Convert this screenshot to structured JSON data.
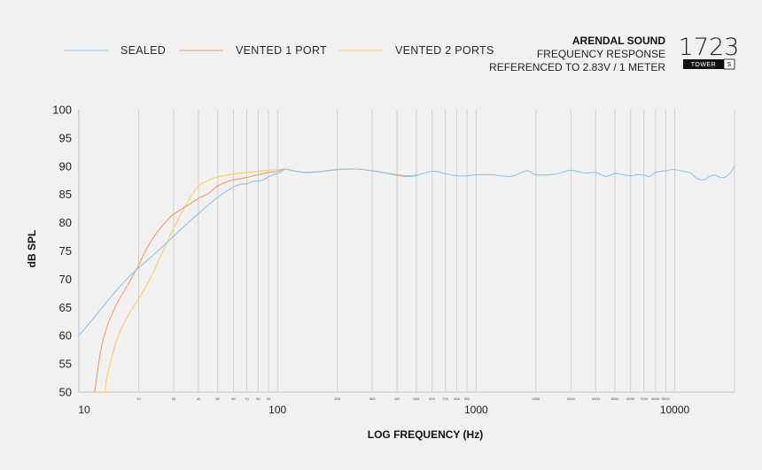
{
  "header": {
    "brand": "ARENDAL SOUND",
    "subtitle": "FREQUENCY RESPONSE",
    "reference": "REFERENCED TO 2.83V / 1 METER"
  },
  "logo": {
    "model": "1723",
    "variant": "TOWER",
    "size": "S"
  },
  "chart_data": {
    "type": "line",
    "title": "FREQUENCY RESPONSE",
    "xlabel": "LOG FREQUENCY (Hz)",
    "ylabel": "dB SPL",
    "xscale": "log",
    "xlim": [
      10,
      20000
    ],
    "ylim": [
      50,
      100
    ],
    "yticks": [
      100,
      95,
      90,
      85,
      80,
      75,
      70,
      65,
      60,
      55,
      50
    ],
    "ytick_labels": [
      "100",
      "95",
      "90",
      "85",
      "80",
      "75",
      "70",
      "65",
      "60",
      "55",
      "50"
    ],
    "xticks_major": [
      10,
      100,
      1000,
      10000
    ],
    "xtick_major_labels": [
      "10",
      "100",
      "1000",
      "10000"
    ],
    "xticks_minor": [
      20,
      30,
      40,
      50,
      60,
      70,
      80,
      90,
      200,
      300,
      400,
      500,
      600,
      700,
      800,
      900,
      2000,
      3000,
      4000,
      5000,
      6000,
      7000,
      8000,
      9000
    ],
    "xtick_minor_labels": [
      "20",
      "30",
      "40",
      "50",
      "60",
      "70",
      "80",
      "90",
      "200",
      "300",
      "400",
      "500",
      "600",
      "700",
      "800",
      "900",
      "2000",
      "3000",
      "4000",
      "5000",
      "6000",
      "7000",
      "8000",
      "9000"
    ],
    "legend_position": "top-left",
    "grid": "vertical",
    "series": [
      {
        "name": "SEALED",
        "color": "#8ec3e6",
        "x": [
          10,
          12,
          15,
          18,
          20,
          25,
          30,
          35,
          40,
          45,
          50,
          55,
          60,
          65,
          70,
          75,
          80,
          85,
          90,
          95,
          100,
          105,
          110,
          120,
          140,
          170,
          200,
          250,
          300,
          350,
          400,
          450,
          500,
          600,
          700,
          800,
          900,
          1000,
          1200,
          1500,
          1800,
          2000,
          2500,
          3000,
          3500,
          4000,
          4500,
          5000,
          5500,
          6000,
          6500,
          7000,
          7500,
          8000,
          9000,
          10000,
          11000,
          12000,
          13000,
          14000,
          15000,
          16000,
          17000,
          18000,
          19000,
          20000
        ],
        "y": [
          60,
          63.3,
          67.5,
          70.5,
          72,
          75,
          77.6,
          79.8,
          81.6,
          83.2,
          84.5,
          85.5,
          86.3,
          86.8,
          86.9,
          87.3,
          87.4,
          87.6,
          88.1,
          88.5,
          88.7,
          89.1,
          89.5,
          89.2,
          88.9,
          89.1,
          89.4,
          89.5,
          89.2,
          88.8,
          88.5,
          88.3,
          88.4,
          89.1,
          88.7,
          88.3,
          88.3,
          88.5,
          88.5,
          88.2,
          89.2,
          88.5,
          88.6,
          89.3,
          88.8,
          88.9,
          88.2,
          88.7,
          88.5,
          88.3,
          88.5,
          88.4,
          88.2,
          88.9,
          89.2,
          89.4,
          89.1,
          88.8,
          87.8,
          87.6,
          88.2,
          88.4,
          88.0,
          88.1,
          88.8,
          90.0
        ]
      },
      {
        "name": "VENTED 1 PORT",
        "color": "#ee9c68",
        "x": [
          12,
          13,
          14,
          15,
          16,
          18,
          20,
          22,
          25,
          28,
          30,
          35,
          40,
          45,
          50,
          55,
          60,
          70,
          80,
          90,
          100,
          110,
          120,
          140,
          170,
          200,
          250,
          300,
          350,
          400,
          450,
          500
        ],
        "y": [
          50,
          58,
          62,
          64.5,
          66.5,
          69.5,
          72.5,
          75.5,
          78.5,
          80.5,
          81.5,
          83,
          84.3,
          85.2,
          86.5,
          87.2,
          87.6,
          88,
          88.5,
          88.9,
          89.1,
          89.5,
          89.2,
          88.9,
          89.1,
          89.4,
          89.5,
          89.2,
          88.8,
          88.4,
          88.2,
          88.3
        ]
      },
      {
        "name": "VENTED 2 PORTS",
        "color": "#f7d05c",
        "x": [
          13.5,
          14,
          15,
          16,
          18,
          20,
          22,
          25,
          28,
          30,
          35,
          40,
          45,
          50,
          55,
          60,
          70,
          80,
          90,
          100,
          110,
          120,
          140,
          170,
          200,
          250,
          300,
          350,
          400,
          450,
          500
        ],
        "y": [
          50,
          53.5,
          57.5,
          60.5,
          64,
          66.5,
          69,
          73,
          76.8,
          79,
          83.5,
          86.5,
          87.5,
          88.1,
          88.4,
          88.6,
          88.9,
          89.1,
          89.3,
          89.4,
          89.5,
          89.2,
          88.9,
          89.1,
          89.4,
          89.5,
          89.2,
          88.8,
          88.5,
          88.3,
          88.4
        ]
      }
    ]
  }
}
